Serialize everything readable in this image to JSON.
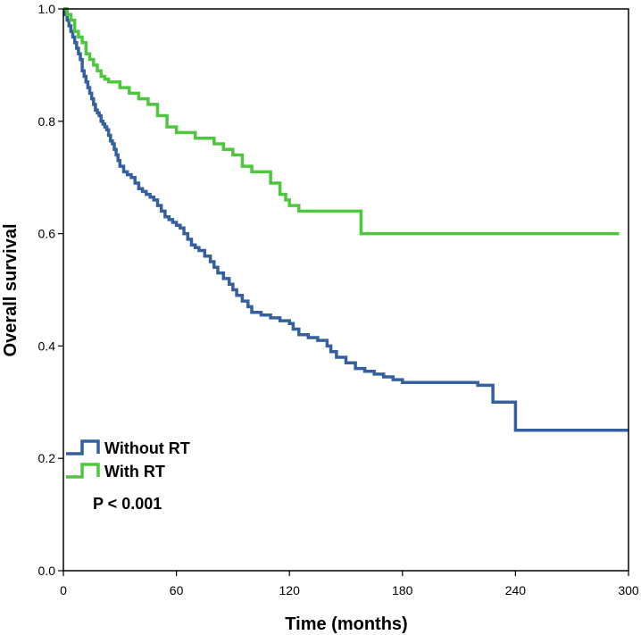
{
  "chart_data": {
    "type": "line",
    "subtype": "kaplan-meier step",
    "xlabel": "Time (months)",
    "ylabel": "Overall survival",
    "xlim": [
      0,
      300
    ],
    "ylim": [
      0,
      1.0
    ],
    "xticks": [
      0,
      60,
      120,
      180,
      240,
      300
    ],
    "yticks": [
      0.0,
      0.2,
      0.4,
      0.6,
      0.8,
      1.0
    ],
    "xtick_labels": [
      "0",
      "60",
      "120",
      "180",
      "240",
      "300"
    ],
    "ytick_labels": [
      "0.0",
      "0.2",
      "0.4",
      "0.6",
      "0.8",
      "1.0"
    ],
    "grid": false,
    "legend_position": "bottom-left",
    "annotation": "P < 0.001",
    "series": [
      {
        "name": "Without RT",
        "color": "#35609f",
        "x": [
          0,
          1,
          2,
          3,
          4,
          5,
          6,
          7,
          8,
          9,
          10,
          11,
          12,
          13,
          14,
          15,
          16,
          17,
          18,
          19,
          20,
          21,
          22,
          23,
          24,
          25,
          26,
          27,
          28,
          29,
          30,
          32,
          34,
          36,
          38,
          40,
          42,
          44,
          46,
          48,
          50,
          52,
          54,
          56,
          58,
          60,
          62,
          64,
          66,
          68,
          70,
          72,
          75,
          78,
          80,
          82,
          85,
          88,
          90,
          92,
          95,
          98,
          100,
          105,
          110,
          115,
          120,
          122,
          125,
          130,
          135,
          140,
          142,
          145,
          150,
          155,
          160,
          165,
          170,
          175,
          180,
          190,
          200,
          210,
          220,
          228,
          236,
          240,
          250,
          260,
          280,
          300
        ],
        "y": [
          1.0,
          0.99,
          0.98,
          0.97,
          0.96,
          0.95,
          0.94,
          0.93,
          0.92,
          0.91,
          0.89,
          0.88,
          0.87,
          0.86,
          0.85,
          0.84,
          0.83,
          0.82,
          0.815,
          0.81,
          0.8,
          0.795,
          0.79,
          0.785,
          0.775,
          0.765,
          0.76,
          0.75,
          0.74,
          0.73,
          0.72,
          0.71,
          0.705,
          0.7,
          0.69,
          0.68,
          0.675,
          0.67,
          0.665,
          0.66,
          0.65,
          0.64,
          0.63,
          0.625,
          0.62,
          0.615,
          0.61,
          0.6,
          0.59,
          0.58,
          0.575,
          0.57,
          0.56,
          0.55,
          0.54,
          0.53,
          0.52,
          0.51,
          0.5,
          0.49,
          0.48,
          0.47,
          0.46,
          0.455,
          0.45,
          0.445,
          0.44,
          0.43,
          0.42,
          0.415,
          0.41,
          0.4,
          0.39,
          0.38,
          0.37,
          0.36,
          0.355,
          0.35,
          0.345,
          0.34,
          0.335,
          0.335,
          0.335,
          0.335,
          0.33,
          0.3,
          0.3,
          0.25,
          0.25,
          0.25,
          0.25,
          0.25
        ]
      },
      {
        "name": "With RT",
        "color": "#4ec73e",
        "x": [
          0,
          2,
          4,
          6,
          8,
          10,
          12,
          14,
          16,
          18,
          20,
          22,
          24,
          30,
          35,
          40,
          45,
          50,
          55,
          60,
          70,
          80,
          85,
          90,
          95,
          100,
          110,
          115,
          118,
          120,
          125,
          130,
          140,
          150,
          155,
          158,
          170,
          200,
          230,
          260,
          295
        ],
        "y": [
          1.0,
          0.99,
          0.98,
          0.96,
          0.95,
          0.94,
          0.92,
          0.91,
          0.9,
          0.89,
          0.88,
          0.875,
          0.87,
          0.86,
          0.85,
          0.84,
          0.83,
          0.81,
          0.79,
          0.78,
          0.77,
          0.76,
          0.75,
          0.74,
          0.72,
          0.71,
          0.69,
          0.67,
          0.66,
          0.65,
          0.64,
          0.64,
          0.64,
          0.64,
          0.64,
          0.6,
          0.6,
          0.6,
          0.6,
          0.6,
          0.6
        ]
      }
    ]
  }
}
